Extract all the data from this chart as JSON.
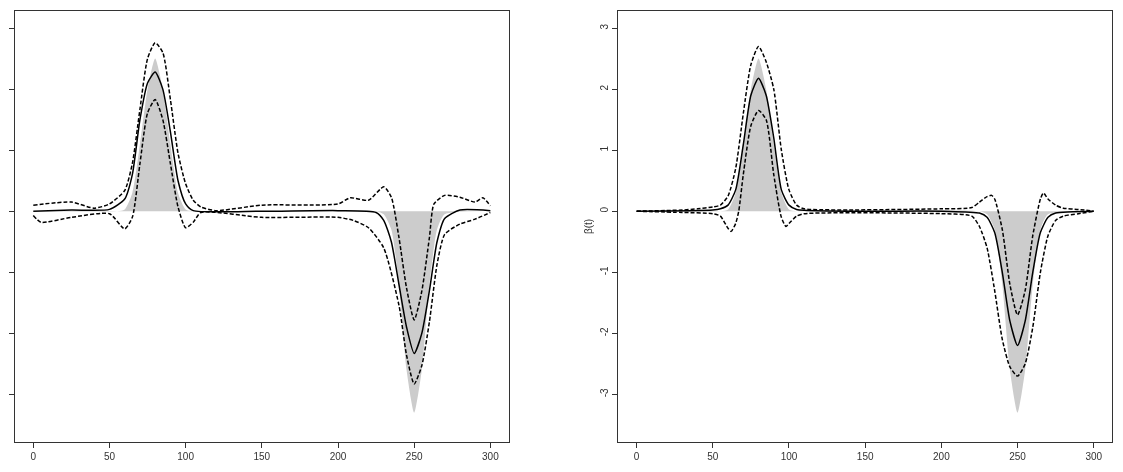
{
  "chart_data": [
    {
      "type": "line",
      "xlim": [
        -12,
        312
      ],
      "xticks": [
        0,
        50,
        100,
        150,
        200,
        250,
        300
      ],
      "ylim": [
        -3.78,
        3.28
      ],
      "yticks": [
        {
          "value": -3,
          "label": null
        },
        {
          "value": -2,
          "label": null
        },
        {
          "value": -1,
          "label": null
        },
        {
          "value": 0,
          "label": null
        },
        {
          "value": 1,
          "label": null
        },
        {
          "value": 2,
          "label": null
        },
        {
          "value": 3,
          "label": null
        }
      ],
      "tick_labels": "x",
      "series": [
        {
          "type": "area",
          "color": "#cccccc",
          "x": [
            0,
            55,
            60,
            65,
            70,
            75,
            80,
            85,
            90,
            95,
            100,
            105,
            225,
            230,
            235,
            240,
            245,
            250,
            255,
            260,
            265,
            270,
            300
          ],
          "values": [
            0,
            0,
            0.03,
            0.3,
            1.1,
            2.0,
            2.5,
            2.0,
            1.1,
            0.3,
            0.03,
            0,
            0,
            -0.05,
            -0.3,
            -1.2,
            -2.6,
            -3.3,
            -2.6,
            -1.2,
            -0.3,
            -0.05,
            0
          ]
        },
        {
          "color": "#000000",
          "line_style": "solid",
          "x": [
            0,
            25,
            50,
            60,
            65,
            70,
            75,
            80,
            85,
            90,
            95,
            100,
            105,
            150,
            200,
            225,
            230,
            235,
            240,
            245,
            250,
            255,
            260,
            265,
            270,
            280,
            300
          ],
          "values": [
            0,
            0.02,
            0.03,
            0.2,
            0.6,
            1.5,
            2.1,
            2.28,
            2.0,
            1.3,
            0.5,
            0.12,
            0.01,
            0,
            0.01,
            -0.02,
            -0.15,
            -0.5,
            -1.2,
            -1.9,
            -2.33,
            -2.0,
            -1.3,
            -0.5,
            -0.12,
            0.02,
            0.01
          ]
        },
        {
          "color": "#000000",
          "line_style": "dashed",
          "x": [
            0,
            25,
            40,
            50,
            60,
            65,
            70,
            75,
            80,
            85,
            90,
            95,
            100,
            105,
            110,
            120,
            150,
            200,
            208,
            220,
            230,
            235,
            240,
            245,
            250,
            255,
            260,
            263,
            270,
            280,
            290,
            295,
            300
          ],
          "values": [
            0.1,
            0.15,
            0.05,
            0.12,
            0.34,
            0.78,
            1.67,
            2.5,
            2.76,
            2.6,
            1.83,
            0.95,
            0.45,
            0.18,
            0.07,
            0.01,
            0.1,
            0.12,
            0.22,
            0.18,
            0.4,
            0.23,
            -0.43,
            -1.26,
            -1.78,
            -1.31,
            -0.43,
            0.12,
            0.26,
            0.23,
            0.15,
            0.22,
            0.09
          ]
        },
        {
          "color": "#000000",
          "line_style": "dashed",
          "x": [
            0,
            5,
            25,
            50,
            60,
            65,
            70,
            75,
            80,
            85,
            90,
            95,
            100,
            105,
            110,
            150,
            200,
            210,
            220,
            230,
            240,
            245,
            250,
            255,
            260,
            265,
            270,
            280,
            290,
            300
          ],
          "values": [
            -0.07,
            -0.18,
            -0.1,
            -0.04,
            -0.29,
            -0.1,
            0.78,
            1.61,
            1.83,
            1.5,
            0.78,
            0.07,
            -0.27,
            -0.18,
            -0.02,
            -0.1,
            -0.1,
            -0.15,
            -0.27,
            -0.6,
            -1.54,
            -2.36,
            -2.83,
            -2.53,
            -1.81,
            -0.87,
            -0.38,
            -0.21,
            -0.13,
            -0.02
          ]
        }
      ]
    },
    {
      "type": "line",
      "ylabel": "β(t)",
      "xlim": [
        -12,
        312
      ],
      "xticks": [
        0,
        50,
        100,
        150,
        200,
        250,
        300
      ],
      "ylim": [
        -3.78,
        3.28
      ],
      "yticks": [
        -3,
        -2,
        -1,
        0,
        1,
        2,
        3
      ],
      "series": [
        {
          "type": "area",
          "color": "#cccccc",
          "x": [
            0,
            55,
            60,
            65,
            70,
            75,
            80,
            85,
            90,
            95,
            100,
            105,
            225,
            230,
            235,
            240,
            245,
            250,
            255,
            260,
            265,
            270,
            300
          ],
          "values": [
            0,
            0,
            0.03,
            0.3,
            1.1,
            2.0,
            2.5,
            2.0,
            1.1,
            0.3,
            0.03,
            0,
            0,
            -0.05,
            -0.3,
            -1.2,
            -2.6,
            -3.3,
            -2.6,
            -1.2,
            -0.3,
            -0.05,
            0
          ]
        },
        {
          "color": "#000000",
          "line_style": "solid",
          "x": [
            0,
            50,
            55,
            60,
            65,
            70,
            75,
            80,
            85,
            90,
            95,
            100,
            105,
            200,
            225,
            230,
            235,
            240,
            245,
            250,
            255,
            260,
            265,
            270,
            275,
            300
          ],
          "values": [
            0,
            0.02,
            0.04,
            0.1,
            0.35,
            1.09,
            1.9,
            2.18,
            1.9,
            1.2,
            0.35,
            0.1,
            0.03,
            0,
            -0.03,
            -0.1,
            -0.35,
            -1.0,
            -1.8,
            -2.2,
            -1.8,
            -1.0,
            -0.35,
            -0.1,
            -0.03,
            0
          ]
        },
        {
          "color": "#000000",
          "line_style": "dashed",
          "x": [
            0,
            30,
            40,
            50,
            55,
            60,
            65,
            70,
            75,
            80,
            85,
            90,
            95,
            100,
            105,
            110,
            200,
            220,
            225,
            230,
            233,
            235,
            240,
            245,
            250,
            255,
            260,
            265,
            267,
            270,
            275,
            280,
            290,
            300
          ],
          "values": [
            0,
            0.02,
            0.04,
            0.07,
            0.1,
            0.25,
            0.7,
            1.6,
            2.4,
            2.7,
            2.45,
            2.0,
            1.0,
            0.35,
            0.1,
            0.04,
            0.04,
            0.06,
            0.15,
            0.24,
            0.26,
            0.2,
            -0.3,
            -1.2,
            -1.7,
            -1.3,
            -0.4,
            0.2,
            0.3,
            0.2,
            0.1,
            0.05,
            0.03,
            0
          ]
        },
        {
          "color": "#000000",
          "line_style": "dashed",
          "x": [
            0,
            30,
            50,
            55,
            60,
            62,
            65,
            67,
            70,
            75,
            80,
            85,
            90,
            95,
            98,
            100,
            105,
            110,
            200,
            220,
            225,
            230,
            235,
            240,
            245,
            250,
            255,
            260,
            265,
            270,
            275,
            280,
            290,
            300
          ],
          "values": [
            0,
            -0.02,
            -0.04,
            -0.08,
            -0.28,
            -0.33,
            -0.2,
            0,
            0.6,
            1.4,
            1.65,
            1.5,
            0.6,
            -0.1,
            -0.25,
            -0.2,
            -0.08,
            -0.04,
            -0.04,
            -0.08,
            -0.25,
            -0.6,
            -1.3,
            -2.1,
            -2.55,
            -2.7,
            -2.5,
            -1.9,
            -1.0,
            -0.4,
            -0.15,
            -0.08,
            -0.04,
            0
          ]
        }
      ]
    }
  ]
}
